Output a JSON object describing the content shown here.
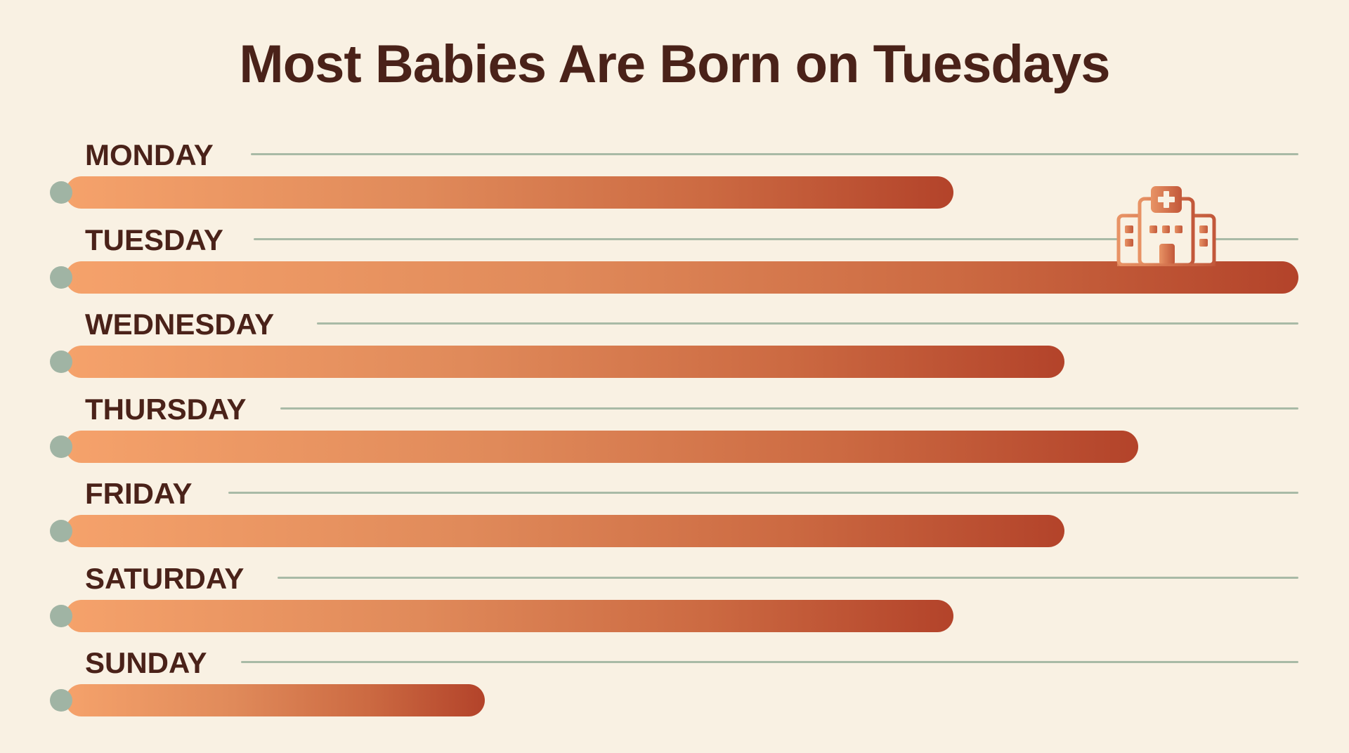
{
  "chart_data": {
    "type": "bar",
    "orientation": "horizontal",
    "title": "Most Babies Are Born on Tuesdays",
    "xlabel": "",
    "ylabel": "",
    "categories": [
      "MONDAY",
      "TUESDAY",
      "WEDNESDAY",
      "THURSDAY",
      "FRIDAY",
      "SATURDAY",
      "SUNDAY"
    ],
    "values": [
      72,
      100,
      81,
      87,
      81,
      72,
      34
    ],
    "value_note": "Relative bar length (Tuesday = 100); no axis or numeric labels shown",
    "xlim": [
      0,
      100
    ],
    "grid": true,
    "legend": null,
    "annotations": [
      {
        "type": "icon",
        "name": "hospital-icon",
        "category": "TUESDAY"
      }
    ]
  },
  "colors": {
    "background": "#f9f1e3",
    "text": "#4a2219",
    "bar_start": "#f5a26b",
    "bar_end": "#b3432a",
    "gridline": "#a9baa6",
    "dot": "#a0b4a4"
  },
  "rows": [
    {
      "label": "MONDAY",
      "value": 72
    },
    {
      "label": "TUESDAY",
      "value": 100
    },
    {
      "label": "WEDNESDAY",
      "value": 81
    },
    {
      "label": "THURSDAY",
      "value": 87
    },
    {
      "label": "FRIDAY",
      "value": 81
    },
    {
      "label": "SATURDAY",
      "value": 72
    },
    {
      "label": "SUNDAY",
      "value": 34
    }
  ]
}
